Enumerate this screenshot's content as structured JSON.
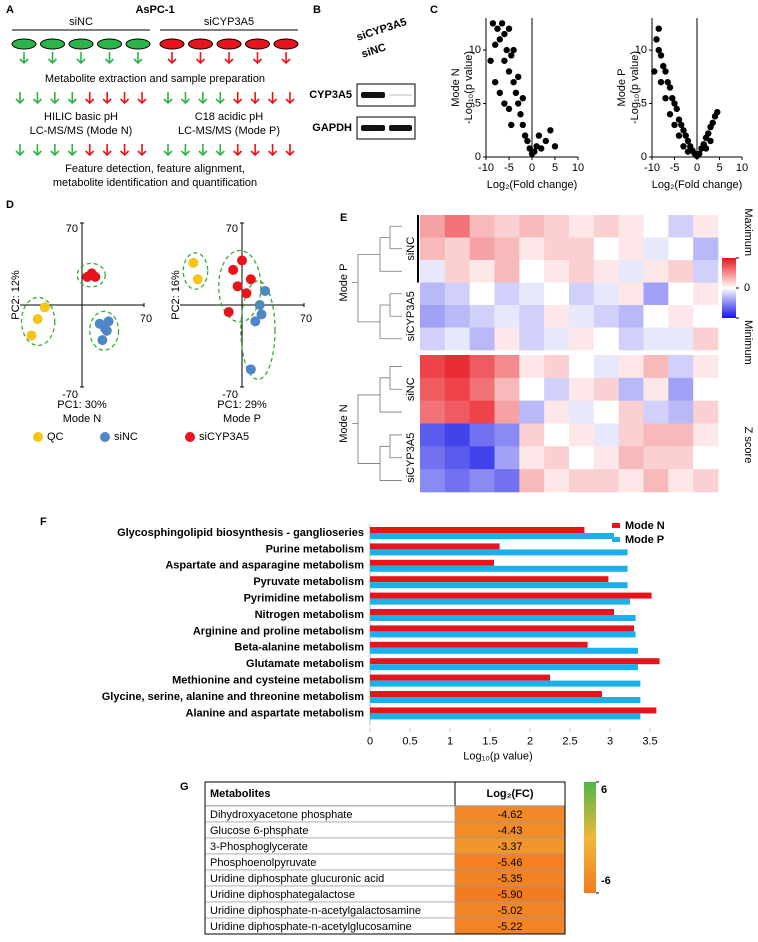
{
  "panel_labels": [
    "A",
    "B",
    "C",
    "D",
    "E",
    "F",
    "G"
  ],
  "workflow": {
    "title": "AsPC-1",
    "groups": [
      "siNC",
      "siCYP3A5"
    ],
    "steps": [
      "Metabolite extraction and sample preparation",
      "HILIC basic pH",
      "LC-MS/MS (Mode N)",
      "C18 acidic pH",
      "LC-MS/MS (Mode P)",
      "Feature detection, feature alignment,",
      "metabolite identification and quantification"
    ]
  },
  "blot": {
    "lanes": [
      "siCYP3A5",
      "siNC"
    ],
    "rows": [
      "CYP3A5",
      "GAPDH"
    ]
  },
  "chart_data": [
    {
      "type": "scatter",
      "mode": "Mode N",
      "ylabel": "-Log₁₀(p value)",
      "xlabel": "Log₂(Fold change)",
      "color": "#000000",
      "xlim": [
        -10,
        10
      ],
      "ylim": [
        0,
        13
      ],
      "xticks": [
        -10,
        -5,
        0,
        5,
        10
      ],
      "yticks": [
        0,
        5,
        10
      ],
      "x": [
        -8,
        -7.5,
        -7,
        -6.5,
        -6,
        -6,
        -5.5,
        -5,
        -5,
        -4.5,
        -4,
        -4,
        -3.5,
        -3,
        -3,
        -2.5,
        -2,
        -2,
        -1.5,
        -1,
        -0.5,
        0,
        0.5,
        1,
        1.5,
        2,
        3,
        4,
        5,
        -7,
        -8,
        -6,
        -5,
        -4.5,
        -9,
        -8.5
      ],
      "y": [
        10.5,
        12,
        11,
        12.5,
        9,
        11.5,
        10,
        12,
        8,
        9.5,
        7,
        10,
        6,
        5,
        7.5,
        4,
        5.5,
        3,
        2,
        1.5,
        0.8,
        0.3,
        0.5,
        1,
        2,
        0.8,
        1.5,
        2.5,
        1,
        6,
        7,
        5,
        4.5,
        3,
        9,
        12.5
      ]
    },
    {
      "type": "scatter",
      "mode": "Mode P",
      "ylabel": "-Log₁₀(p value)",
      "xlabel": "Log₂(Fold change)",
      "color": "#000000",
      "xlim": [
        -10,
        10
      ],
      "ylim": [
        0,
        13
      ],
      "xticks": [
        -10,
        -5,
        0,
        5,
        10
      ],
      "yticks": [
        0,
        5,
        10
      ],
      "x": [
        -9,
        -8.5,
        -8,
        -7.5,
        -7,
        -6.5,
        -6,
        -5.5,
        -5,
        -4.5,
        -4,
        -3.5,
        -3,
        -2.5,
        -2,
        -1.5,
        -1,
        -0.5,
        0,
        0.5,
        1,
        1.5,
        2,
        2.5,
        3,
        3.5,
        4,
        4.5,
        -8,
        -7,
        -6,
        -5,
        -4,
        -3,
        -8.5,
        -9.5,
        3,
        2,
        -2
      ],
      "y": [
        11,
        10,
        9.5,
        8.5,
        8,
        7,
        6.5,
        5.5,
        5,
        4.5,
        3.5,
        3,
        2.5,
        2,
        1.5,
        1,
        0.6,
        0.3,
        0.1,
        0.3,
        0.8,
        1.2,
        1.8,
        2.2,
        2.8,
        3.2,
        3.8,
        4.2,
        7,
        5.5,
        4,
        3,
        2,
        1,
        12,
        8,
        1.5,
        0.8,
        0.5
      ]
    },
    {
      "type": "pca",
      "mode": "Mode N",
      "xlabel": "PC1: 30%",
      "ylabel": "PC2: 12%",
      "xlim": [
        -70,
        70
      ],
      "ylim": [
        -70,
        70
      ],
      "xticks": [
        70
      ],
      "yticks": [
        -70,
        70
      ],
      "series": [
        {
          "name": "QC",
          "color": "#f5c518",
          "x": [
            -50,
            -42,
            -57
          ],
          "y": [
            -12,
            -2,
            -26
          ]
        },
        {
          "name": "siNC",
          "color": "#4e86c6",
          "x": [
            20,
            26,
            30,
            23,
            28
          ],
          "y": [
            -16,
            -20,
            -14,
            -30,
            -22
          ]
        },
        {
          "name": "siCYP3A5",
          "color": "#e8141c",
          "x": [
            6,
            11,
            15
          ],
          "y": [
            24,
            27,
            24
          ]
        }
      ]
    },
    {
      "type": "pca",
      "mode": "Mode P",
      "xlabel": "PC1: 29%",
      "ylabel": "PC2: 16%",
      "xlim": [
        -70,
        70
      ],
      "ylim": [
        -70,
        70
      ],
      "xticks": [
        70
      ],
      "yticks": [
        -70,
        70
      ],
      "series": [
        {
          "color": "#f5c518",
          "x": [
            -55,
            -50
          ],
          "y": [
            36,
            22
          ]
        },
        {
          "color": "#4e86c6",
          "x": [
            26,
            22,
            15,
            10,
            20
          ],
          "y": [
            12,
            -8,
            -14,
            -55,
            0
          ]
        },
        {
          "color": "#e8141c",
          "x": [
            -10,
            0,
            5,
            -15,
            10,
            -5
          ],
          "y": [
            30,
            38,
            10,
            -6,
            22,
            16
          ]
        }
      ]
    },
    {
      "type": "heatmap",
      "zlabel": "Z score",
      "zlim": [
        -1,
        1
      ],
      "zticks": [
        {
          "value": 1,
          "label": "Maximum"
        },
        0,
        {
          "value": -1,
          "label": "Minimum"
        }
      ],
      "zcolors": [
        "#1414e6",
        "#ffffff",
        "#e8141c"
      ],
      "modes": [
        {
          "name": "Mode P",
          "groups": [
            "siNC",
            "siCYP3A5"
          ],
          "values": [
            [
              0.4,
              0.6,
              0.3,
              0.2,
              0.3,
              0.2,
              0.1,
              0.2,
              0.1,
              0.0,
              -0.2,
              0.1
            ],
            [
              0.3,
              0.2,
              0.4,
              0.3,
              0.1,
              0.2,
              0.2,
              0.0,
              0.1,
              -0.1,
              0.0,
              -0.3
            ],
            [
              -0.1,
              0.2,
              0.1,
              0.3,
              0.0,
              0.1,
              0.2,
              0.1,
              -0.1,
              0.1,
              0.2,
              -0.2
            ],
            [
              -0.3,
              -0.2,
              0.0,
              -0.2,
              -0.1,
              0.0,
              -0.2,
              -0.1,
              0.1,
              -0.4,
              0.0,
              0.1
            ],
            [
              -0.4,
              -0.3,
              -0.2,
              -0.1,
              -0.2,
              0.1,
              -0.1,
              -0.2,
              -0.3,
              0.0,
              0.1,
              0.0
            ],
            [
              -0.2,
              -0.1,
              -0.3,
              0.1,
              -0.2,
              -0.1,
              0.1,
              0.0,
              -0.2,
              -0.1,
              -0.1,
              0.2
            ]
          ]
        },
        {
          "name": "Mode N",
          "groups": [
            "siNC",
            "siCYP3A5"
          ],
          "values": [
            [
              0.8,
              0.9,
              0.7,
              0.5,
              0.1,
              0.2,
              0.0,
              -0.1,
              0.1,
              0.3,
              -0.2,
              0.1
            ],
            [
              0.7,
              0.8,
              0.6,
              0.3,
              0.0,
              -0.2,
              0.1,
              0.2,
              -0.3,
              0.1,
              -0.4,
              0.0
            ],
            [
              0.6,
              0.7,
              0.8,
              0.4,
              -0.3,
              0.1,
              -0.1,
              0.0,
              0.2,
              -0.2,
              -0.3,
              0.2
            ],
            [
              -0.7,
              -0.8,
              -0.6,
              -0.5,
              0.2,
              0.0,
              0.1,
              -0.1,
              0.2,
              0.3,
              0.3,
              0.1
            ],
            [
              -0.6,
              -0.7,
              -0.8,
              -0.4,
              0.1,
              0.2,
              0.0,
              0.1,
              0.3,
              0.2,
              0.2,
              0.0
            ],
            [
              -0.5,
              -0.6,
              -0.5,
              -0.6,
              0.3,
              0.1,
              0.2,
              0.2,
              0.1,
              0.3,
              0.1,
              0.2
            ]
          ]
        }
      ]
    },
    {
      "type": "barh",
      "xlabel": "Log₁₀(p value)",
      "legend": "upper right",
      "categories": [
        "Glycosphingolipid biosynthesis - ganglioseries",
        "Purine metabolism",
        "Aspartate and asparagine metabolism",
        "Pyruvate metabolism",
        "Pyrimidine metabolism",
        "Nitrogen metabolism",
        "Arginine and proline metabolism",
        "Beta-alanine metabolism",
        "Glutamate metabolism",
        "Methionine and cysteine metabolism",
        "Glycine, serine, alanine and threonine metabolism",
        "Alanine and aspartate metabolism"
      ],
      "series": [
        {
          "name": "Mode N",
          "color": "#e8141c",
          "values": [
            2.68,
            1.62,
            1.55,
            2.98,
            3.52,
            3.05,
            3.3,
            2.72,
            3.62,
            2.25,
            2.9,
            3.58
          ]
        },
        {
          "name": "Mode P",
          "color": "#1ab0ec",
          "values": [
            3.05,
            3.22,
            3.22,
            3.22,
            3.25,
            3.32,
            3.32,
            3.35,
            3.35,
            3.38,
            3.38,
            3.38
          ]
        }
      ],
      "xlim": [
        0,
        3.7
      ],
      "xticks": [
        0,
        0.5,
        1,
        1.5,
        2,
        2.5,
        3,
        3.5
      ]
    }
  ],
  "table": {
    "columns": [
      "Metabolites",
      "Log₂(FC)"
    ],
    "metabolites": [
      "Dihydroxyacetone phosphate",
      "Glucose 6-phsphate",
      "3-Phosphoglycerate",
      "Phosphoenolpyruvate",
      "Uridine diphosphate glucuronic acid",
      "Uridine diphosphategalactose",
      "Uridine diphosphate-n-acetylgalactosamine",
      "Uridine diphosphate-n-acetylglucosamine"
    ],
    "values": [
      -4.62,
      -4.43,
      -3.37,
      -5.46,
      -5.35,
      -5.9,
      -5.02,
      -5.22
    ],
    "value_labels": [
      "-4.62",
      "-4.43",
      "-3.37",
      "-5.46",
      "-5.35",
      "-5.90",
      "-5.02",
      "-5.22"
    ],
    "colorbar": {
      "lim": [
        -6,
        6
      ],
      "ticks": [
        6,
        -6
      ],
      "colors": [
        "#f47b20",
        "#f0b83a",
        "#4db848"
      ]
    }
  }
}
